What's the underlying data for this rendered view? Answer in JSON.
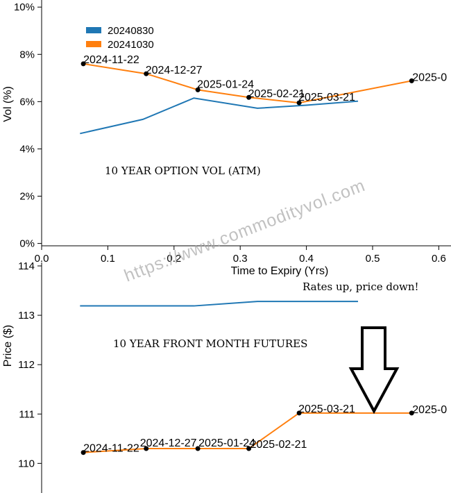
{
  "watermark": "https://www.commodityvol.com",
  "colors": {
    "series_a": "#1f77b4",
    "series_b": "#ff7f0e",
    "axis": "#000000",
    "point": "#000000"
  },
  "chart_data": [
    {
      "type": "line",
      "title": "",
      "annotation": "10 YEAR OPTION VOL (ATM)",
      "xlabel": "Time to Expiry (Yrs)",
      "ylabel": "Vol (%)",
      "xlim": [
        0.0,
        0.62
      ],
      "ylim": [
        -0.1,
        10.3
      ],
      "xticks": [
        0.0,
        0.1,
        0.2,
        0.3,
        0.4,
        0.5,
        0.6
      ],
      "xtick_labels": [
        "0.0",
        "0.1",
        "0.2",
        "0.3",
        "0.4",
        "0.5",
        "0.6"
      ],
      "yticks": [
        0,
        2,
        4,
        6,
        8,
        10
      ],
      "ytick_labels": [
        "0%",
        "2%",
        "4%",
        "6%",
        "8%",
        "10%"
      ],
      "legend": {
        "placement": "top-left",
        "entries": [
          "20240830",
          "20241030"
        ]
      },
      "series": [
        {
          "name": "20240830",
          "color": "#1f77b4",
          "x": [
            0.058,
            0.153,
            0.23,
            0.326,
            0.4,
            0.478
          ],
          "y": [
            4.65,
            5.25,
            6.15,
            5.72,
            5.85,
            6.02
          ],
          "markers": false,
          "point_labels": []
        },
        {
          "name": "20241030",
          "color": "#ff7f0e",
          "x": [
            0.063,
            0.158,
            0.236,
            0.313,
            0.389,
            0.559
          ],
          "y": [
            7.6,
            7.18,
            6.5,
            6.18,
            5.95,
            6.88
          ],
          "markers": true,
          "point_labels": [
            "2024-11-22",
            "2024-12-27",
            "2025-01-24",
            "2025-02-21",
            "2025-03-21",
            "2025-0"
          ]
        }
      ]
    },
    {
      "type": "line",
      "title": "",
      "annotation": "10 YEAR FRONT MONTH FUTURES",
      "note": "Rates up, price down!",
      "xlabel": "",
      "ylabel": "Price ($)",
      "xlim": [
        0.0,
        0.62
      ],
      "ylim": [
        109.4,
        114.07
      ],
      "yticks": [
        110,
        111,
        112,
        113,
        114
      ],
      "ytick_labels": [
        "110",
        "111",
        "112",
        "113",
        "114"
      ],
      "series": [
        {
          "name": "20240830",
          "color": "#1f77b4",
          "x": [
            0.058,
            0.153,
            0.23,
            0.326,
            0.4,
            0.478
          ],
          "y": [
            113.19,
            113.19,
            113.19,
            113.28,
            113.28,
            113.28
          ],
          "markers": false,
          "point_labels": []
        },
        {
          "name": "20241030",
          "color": "#ff7f0e",
          "x": [
            0.063,
            0.158,
            0.236,
            0.313,
            0.389,
            0.559
          ],
          "y": [
            110.22,
            110.3,
            110.3,
            110.3,
            111.02,
            111.02
          ],
          "markers": true,
          "point_labels": [
            "2024-11-22",
            "2024-12-27",
            "2025-01-24",
            "2025-02-21",
            "2025-03-21",
            "2025-0"
          ]
        }
      ]
    }
  ]
}
